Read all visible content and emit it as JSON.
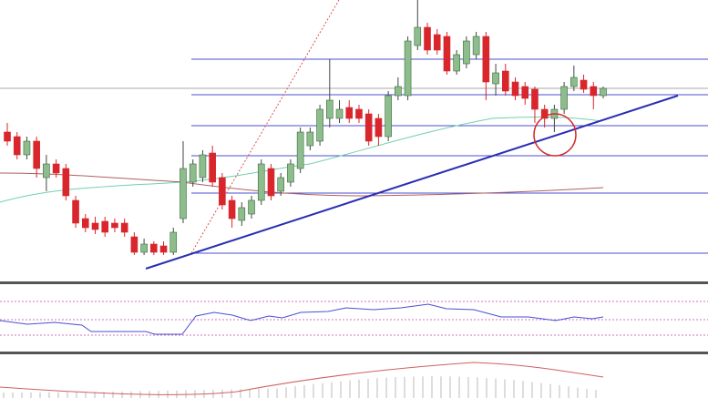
{
  "chart_data": {
    "type": "candlestick",
    "up_color": "#8dbd8d",
    "down_color": "#d8262c",
    "ylim": [
      0,
      310
    ],
    "open": [
      165,
      160,
      140,
      155,
      115,
      130,
      125,
      90,
      70,
      65,
      67,
      65,
      65,
      50,
      33,
      42,
      40,
      33,
      70,
      110,
      115,
      142,
      115,
      90,
      68,
      75,
      90,
      125,
      100,
      110,
      125,
      150,
      155,
      180,
      180,
      192,
      190,
      185,
      180,
      160,
      205,
      205,
      260,
      280,
      272,
      270,
      232,
      240,
      250,
      270,
      218,
      232,
      220,
      215,
      212,
      190,
      180,
      190,
      215,
      222,
      215,
      205
    ],
    "high": [
      175,
      165,
      160,
      160,
      140,
      135,
      130,
      95,
      75,
      72,
      72,
      70,
      70,
      55,
      48,
      45,
      45,
      60,
      155,
      135,
      145,
      150,
      120,
      95,
      88,
      95,
      135,
      130,
      120,
      135,
      170,
      170,
      195,
      245,
      200,
      200,
      195,
      190,
      185,
      210,
      225,
      270,
      310,
      285,
      278,
      275,
      255,
      270,
      275,
      275,
      240,
      240,
      225,
      220,
      215,
      195,
      195,
      220,
      238,
      228,
      220,
      215
    ],
    "low": [
      150,
      135,
      135,
      115,
      100,
      115,
      90,
      60,
      55,
      53,
      50,
      55,
      50,
      30,
      30,
      30,
      30,
      30,
      65,
      105,
      110,
      105,
      80,
      60,
      62,
      70,
      85,
      90,
      95,
      105,
      120,
      145,
      150,
      170,
      175,
      175,
      175,
      150,
      150,
      155,
      200,
      200,
      255,
      250,
      250,
      228,
      228,
      235,
      245,
      200,
      205,
      205,
      200,
      195,
      175,
      170,
      165,
      185,
      210,
      208,
      190,
      202
    ],
    "close": [
      155,
      140,
      155,
      125,
      130,
      120,
      95,
      65,
      60,
      58,
      55,
      60,
      55,
      33,
      42,
      33,
      33,
      55,
      125,
      130,
      140,
      110,
      85,
      70,
      82,
      90,
      130,
      95,
      115,
      130,
      165,
      165,
      190,
      200,
      190,
      180,
      180,
      155,
      160,
      205,
      215,
      265,
      280,
      255,
      255,
      232,
      250,
      265,
      270,
      220,
      230,
      210,
      205,
      202,
      190,
      180,
      190,
      215,
      225,
      212,
      205,
      213
    ]
  }
}
